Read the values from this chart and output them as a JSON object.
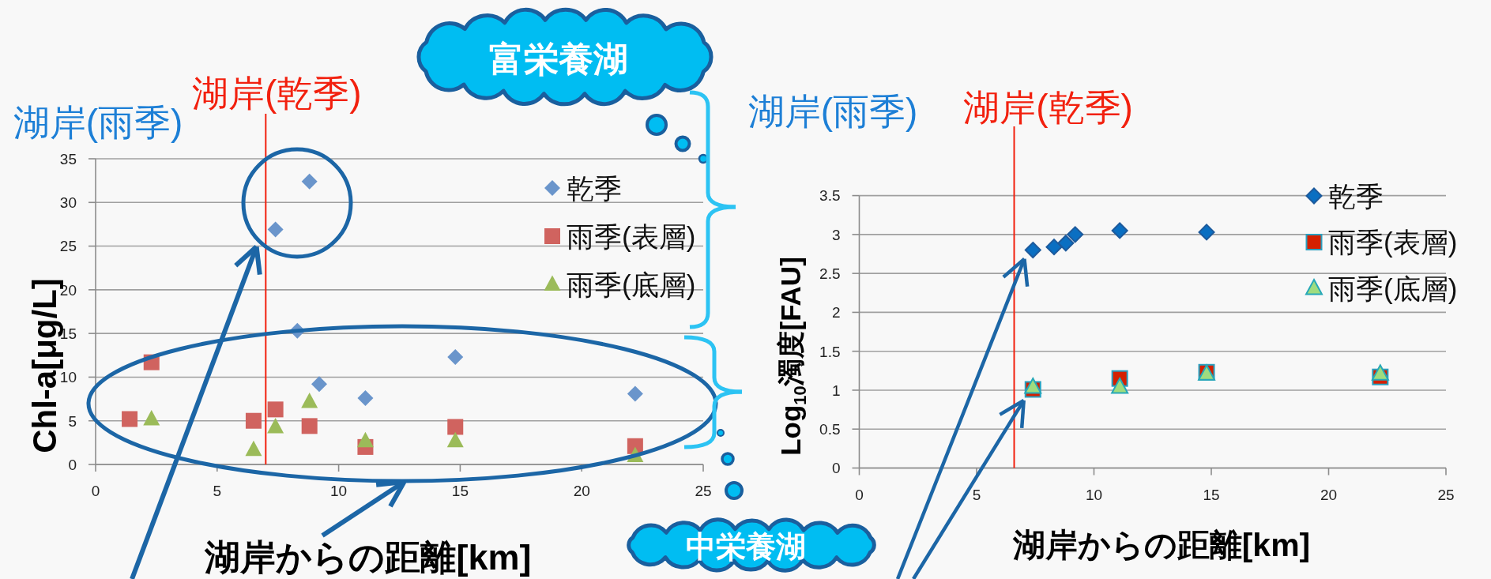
{
  "chart_data": [
    {
      "type": "scatter",
      "xlabel": "湖岸からの距離[km]",
      "ylabel": "Chl-a[μg/L]",
      "xlim": [
        0,
        25
      ],
      "ylim": [
        0,
        35
      ],
      "xticks": [
        0,
        5,
        10,
        15,
        20,
        25
      ],
      "yticks": [
        0,
        5,
        10,
        15,
        20,
        25,
        30,
        35
      ],
      "grid": "y",
      "legend": "top right",
      "series": [
        {
          "name": "乾季",
          "color": "#6a95cb",
          "marker": "diamond",
          "x": [
            7.4,
            8.3,
            8.8,
            9.2,
            11.1,
            14.8,
            22.2
          ],
          "values": [
            26.9,
            15.3,
            32.4,
            9.2,
            7.6,
            12.3,
            8.1
          ]
        },
        {
          "name": "雨季(表層)",
          "color": "#d0635f",
          "marker": "square",
          "x": [
            1.4,
            2.3,
            6.5,
            7.4,
            8.8,
            11.1,
            14.8,
            22.2
          ],
          "values": [
            5.2,
            11.7,
            5.0,
            6.3,
            4.4,
            2.0,
            4.3,
            2.1
          ]
        },
        {
          "name": "雨季(底層)",
          "color": "#9bbb59",
          "marker": "triangle",
          "x": [
            2.3,
            6.5,
            7.4,
            8.8,
            11.1,
            14.8,
            22.2
          ],
          "values": [
            5.2,
            1.7,
            4.3,
            7.2,
            2.7,
            2.7,
            1.0
          ]
        }
      ],
      "ref_lines": [
        {
          "axis": "x",
          "value": 7.0,
          "label": "湖岸(乾季)",
          "color": "#f2200e"
        }
      ],
      "annotations": [
        "湖岸(雨季)",
        "富栄養湖",
        "中栄養湖"
      ]
    },
    {
      "type": "scatter",
      "xlabel": "湖岸からの距離[km]",
      "ylabel": "Log$_{10}$濁度[FAU]",
      "xlim": [
        0,
        25
      ],
      "ylim": [
        0,
        3.5
      ],
      "xticks": [
        0,
        5,
        10,
        15,
        20,
        25
      ],
      "yticks": [
        0,
        0.5,
        1,
        1.5,
        2,
        2.5,
        3,
        3.5
      ],
      "grid": "y",
      "legend": "top right",
      "series": [
        {
          "name": "乾季",
          "color": "#0a6fc2",
          "marker": "diamond",
          "x": [
            7.4,
            8.3,
            8.8,
            9.2,
            11.1,
            14.8
          ],
          "values": [
            2.8,
            2.84,
            2.89,
            3.0,
            3.05,
            3.03
          ]
        },
        {
          "name": "雨季(表層)",
          "color": "#d42000",
          "marker": "square",
          "x": [
            7.4,
            11.1,
            14.8,
            22.2
          ],
          "values": [
            1.01,
            1.15,
            1.23,
            1.17
          ]
        },
        {
          "name": "雨季(底層)",
          "color": "#9fdc7f",
          "marker": "triangle",
          "x": [
            7.4,
            11.1,
            14.8,
            22.2
          ],
          "values": [
            1.04,
            1.04,
            1.21,
            1.21
          ]
        }
      ],
      "ref_lines": [
        {
          "axis": "x",
          "value": 6.6,
          "label": "湖岸(乾季)",
          "color": "#f2200e"
        }
      ],
      "annotations": [
        "湖岸(雨季)"
      ]
    }
  ]
}
